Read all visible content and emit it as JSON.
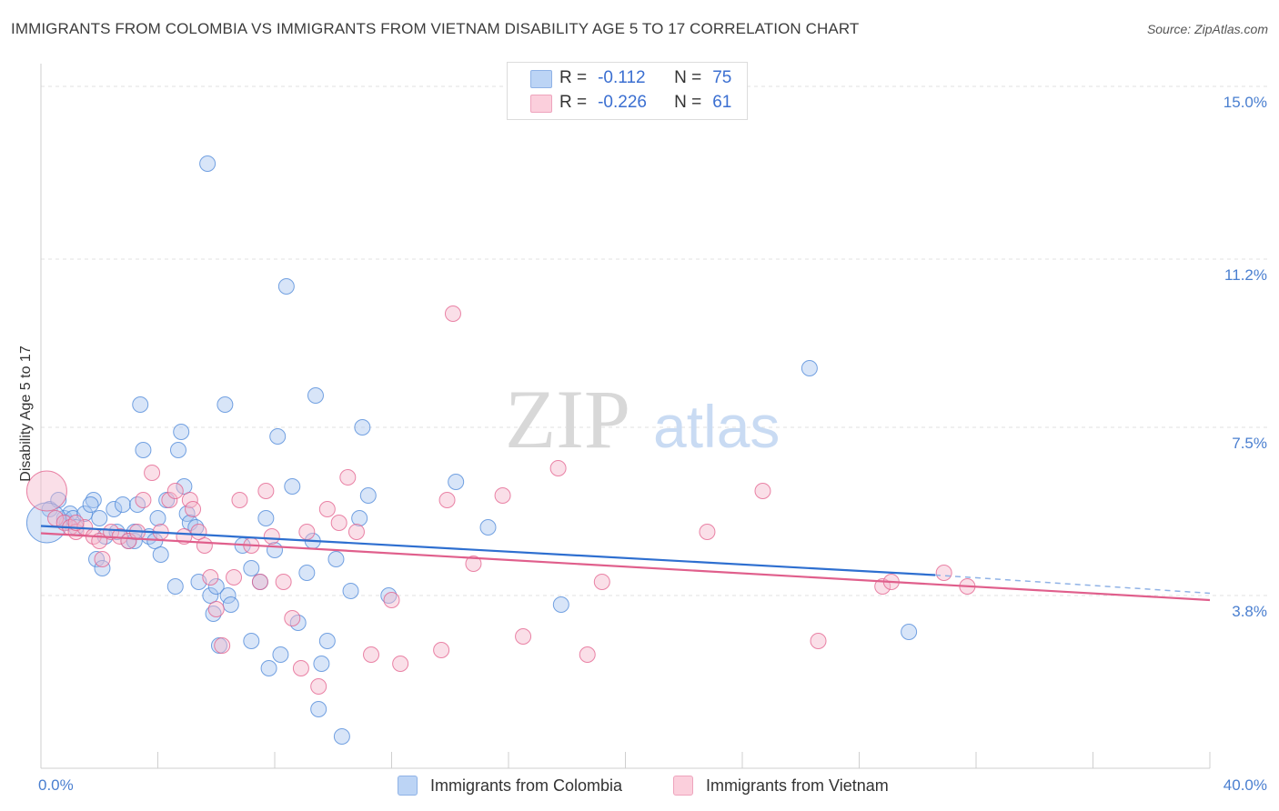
{
  "title": "IMMIGRANTS FROM COLOMBIA VS IMMIGRANTS FROM VIETNAM DISABILITY AGE 5 TO 17 CORRELATION CHART",
  "source": "Source: ZipAtlas.com",
  "watermark": {
    "zip": "ZIP",
    "atlas": "atlas"
  },
  "legend": {
    "colombia": {
      "r_label": "R =",
      "r_value": "-0.112",
      "n_label": "N =",
      "n_value": "75",
      "color": "#a8c6f0"
    },
    "vietnam": {
      "r_label": "R =",
      "r_value": "-0.226",
      "n_label": "N =",
      "n_value": "61",
      "color": "#f5b8cc"
    }
  },
  "bottom_legend": {
    "colombia": "Immigrants from Colombia",
    "vietnam": "Immigrants from Vietnam"
  },
  "chart_data": {
    "type": "scatter",
    "title": "IMMIGRANTS FROM COLOMBIA VS IMMIGRANTS FROM VIETNAM DISABILITY AGE 5 TO 17 CORRELATION CHART",
    "xlabel": "",
    "ylabel": "Disability Age 5 to 17",
    "xlim": [
      0,
      40
    ],
    "ylim": [
      0,
      15.5
    ],
    "x_tick_labels": {
      "min": "0.0%",
      "max": "40.0%"
    },
    "y_ticks": [
      {
        "value": 3.8,
        "label": "3.8%"
      },
      {
        "value": 7.5,
        "label": "7.5%"
      },
      {
        "value": 11.2,
        "label": "11.2%"
      },
      {
        "value": 15.0,
        "label": "15.0%"
      }
    ],
    "series": [
      {
        "name": "Immigrants from Colombia",
        "color": "#4a86d8",
        "fill": "#a8c6f0",
        "trend": {
          "x": [
            0,
            30.6
          ],
          "y": [
            5.33,
            4.25
          ],
          "dash_to": [
            40,
            3.85
          ]
        },
        "points": [
          [
            0.3,
            5.7
          ],
          [
            0.6,
            5.9
          ],
          [
            0.8,
            5.5
          ],
          [
            0.9,
            5.4
          ],
          [
            1.0,
            5.6
          ],
          [
            1.1,
            5.5
          ],
          [
            1.2,
            5.3
          ],
          [
            1.5,
            5.6
          ],
          [
            1.8,
            5.9
          ],
          [
            2.0,
            5.5
          ],
          [
            1.7,
            5.8
          ],
          [
            2.2,
            5.1
          ],
          [
            2.5,
            5.7
          ],
          [
            1.9,
            4.6
          ],
          [
            2.1,
            4.4
          ],
          [
            2.6,
            5.2
          ],
          [
            2.8,
            5.8
          ],
          [
            3.0,
            5.0
          ],
          [
            3.2,
            5.0
          ],
          [
            3.2,
            5.2
          ],
          [
            3.3,
            5.8
          ],
          [
            3.4,
            8.0
          ],
          [
            3.5,
            7.0
          ],
          [
            3.7,
            5.1
          ],
          [
            3.9,
            5.0
          ],
          [
            4.0,
            5.5
          ],
          [
            4.1,
            4.7
          ],
          [
            4.3,
            5.9
          ],
          [
            4.6,
            4.0
          ],
          [
            4.7,
            7.0
          ],
          [
            4.8,
            7.4
          ],
          [
            4.9,
            6.2
          ],
          [
            5.0,
            5.6
          ],
          [
            5.1,
            5.4
          ],
          [
            5.3,
            5.3
          ],
          [
            5.4,
            4.1
          ],
          [
            5.7,
            13.3
          ],
          [
            5.8,
            3.8
          ],
          [
            5.9,
            3.4
          ],
          [
            6.0,
            4.0
          ],
          [
            6.1,
            2.7
          ],
          [
            6.3,
            8.0
          ],
          [
            6.4,
            3.8
          ],
          [
            6.5,
            3.6
          ],
          [
            6.9,
            4.9
          ],
          [
            7.2,
            4.4
          ],
          [
            7.2,
            2.8
          ],
          [
            7.5,
            4.1
          ],
          [
            7.7,
            5.5
          ],
          [
            7.8,
            2.2
          ],
          [
            8.0,
            4.8
          ],
          [
            8.1,
            7.3
          ],
          [
            8.2,
            2.5
          ],
          [
            8.4,
            10.6
          ],
          [
            8.6,
            6.2
          ],
          [
            8.8,
            3.2
          ],
          [
            9.1,
            4.3
          ],
          [
            9.3,
            5.0
          ],
          [
            9.4,
            8.2
          ],
          [
            9.6,
            2.3
          ],
          [
            9.5,
            1.3
          ],
          [
            9.8,
            2.8
          ],
          [
            10.1,
            4.6
          ],
          [
            10.3,
            0.7
          ],
          [
            10.6,
            3.9
          ],
          [
            10.9,
            5.5
          ],
          [
            11.0,
            7.5
          ],
          [
            11.2,
            6.0
          ],
          [
            11.9,
            3.8
          ],
          [
            14.2,
            6.3
          ],
          [
            15.3,
            5.3
          ],
          [
            17.8,
            3.6
          ],
          [
            26.3,
            8.8
          ],
          [
            29.7,
            3.0
          ],
          [
            0.2,
            5.4
          ]
        ]
      },
      {
        "name": "Immigrants from Vietnam",
        "color": "#e35d8b",
        "fill": "#f5b8cc",
        "trend": {
          "x": [
            0,
            40
          ],
          "y": [
            5.17,
            3.7
          ]
        },
        "points": [
          [
            0.2,
            6.1
          ],
          [
            0.5,
            5.5
          ],
          [
            0.8,
            5.4
          ],
          [
            1.0,
            5.3
          ],
          [
            1.2,
            5.2
          ],
          [
            1.5,
            5.3
          ],
          [
            1.8,
            5.1
          ],
          [
            2.0,
            5.0
          ],
          [
            2.1,
            4.6
          ],
          [
            2.4,
            5.2
          ],
          [
            2.7,
            5.1
          ],
          [
            3.0,
            5.0
          ],
          [
            3.3,
            5.2
          ],
          [
            3.5,
            5.9
          ],
          [
            3.8,
            6.5
          ],
          [
            4.1,
            5.2
          ],
          [
            4.4,
            5.9
          ],
          [
            4.6,
            6.1
          ],
          [
            4.9,
            5.1
          ],
          [
            5.1,
            5.9
          ],
          [
            5.2,
            5.7
          ],
          [
            5.4,
            5.2
          ],
          [
            5.6,
            4.9
          ],
          [
            5.8,
            4.2
          ],
          [
            6.0,
            3.5
          ],
          [
            6.2,
            2.7
          ],
          [
            6.6,
            4.2
          ],
          [
            6.8,
            5.9
          ],
          [
            7.2,
            4.9
          ],
          [
            7.5,
            4.1
          ],
          [
            7.7,
            6.1
          ],
          [
            7.9,
            5.1
          ],
          [
            8.3,
            4.1
          ],
          [
            8.6,
            3.3
          ],
          [
            8.9,
            2.2
          ],
          [
            9.1,
            5.2
          ],
          [
            9.5,
            1.8
          ],
          [
            9.8,
            5.7
          ],
          [
            10.2,
            5.4
          ],
          [
            10.5,
            6.4
          ],
          [
            10.8,
            5.2
          ],
          [
            11.3,
            2.5
          ],
          [
            12.0,
            3.7
          ],
          [
            12.3,
            2.3
          ],
          [
            13.7,
            2.6
          ],
          [
            13.9,
            5.9
          ],
          [
            14.1,
            10.0
          ],
          [
            14.8,
            4.5
          ],
          [
            15.8,
            6.0
          ],
          [
            16.5,
            2.9
          ],
          [
            17.7,
            6.6
          ],
          [
            18.7,
            2.5
          ],
          [
            19.2,
            4.1
          ],
          [
            22.8,
            5.2
          ],
          [
            24.7,
            6.1
          ],
          [
            26.6,
            2.8
          ],
          [
            28.8,
            4.0
          ],
          [
            29.1,
            4.1
          ],
          [
            30.9,
            4.3
          ],
          [
            31.7,
            4.0
          ],
          [
            1.2,
            5.4
          ]
        ]
      }
    ]
  }
}
